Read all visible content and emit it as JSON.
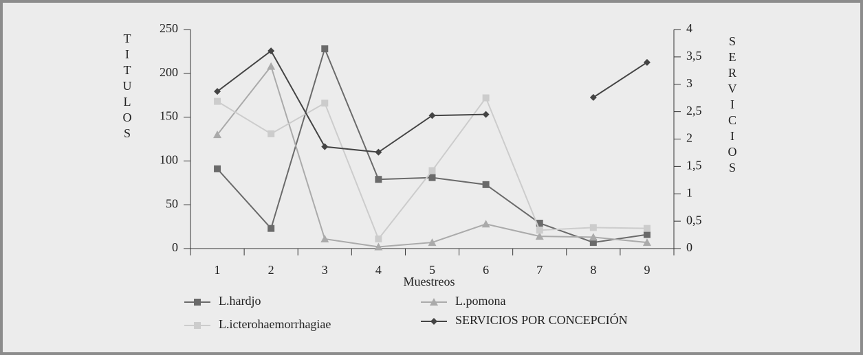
{
  "chart_data": {
    "type": "line",
    "ylabel": "TITULOS",
    "y2label": "SERVICIOS",
    "xlabel": "Muestreos",
    "categories": [
      "1",
      "2",
      "3",
      "4",
      "5",
      "6",
      "7",
      "8",
      "9"
    ],
    "ylim": [
      0,
      250
    ],
    "yticks": [
      0,
      50,
      100,
      150,
      200,
      250
    ],
    "y2lim": [
      0,
      4
    ],
    "y2ticks": [
      0,
      {
        "value": 0.5,
        "label": "0,5"
      },
      1,
      {
        "value": 1.5,
        "label": "1,5"
      },
      2,
      {
        "value": 2.5,
        "label": "2,5"
      },
      3,
      {
        "value": 3.5,
        "label": "3,5"
      },
      4
    ],
    "series": [
      {
        "name": "L.hardjo",
        "color": "#6a6a6a",
        "marker": "square",
        "values": [
          91,
          23,
          228,
          79,
          81,
          73,
          29,
          7,
          16
        ]
      },
      {
        "name": "L.pomona",
        "color": "#aaaaaa",
        "marker": "triangle",
        "values": [
          130,
          208,
          11,
          2,
          7,
          28,
          14,
          13,
          7
        ]
      },
      {
        "name": "L.icterohaemorrhagiae",
        "color": "#cccccc",
        "marker": "square",
        "values": [
          168,
          131,
          166,
          11,
          89,
          172,
          21,
          24,
          23
        ]
      },
      {
        "name": "SERVICIOS POR CONCEPCIÓN",
        "color": "#444444",
        "marker": "diamond",
        "axis": "y2",
        "values": [
          2.87,
          3.61,
          1.86,
          1.76,
          2.43,
          2.45,
          null,
          2.76,
          3.4
        ]
      }
    ]
  }
}
